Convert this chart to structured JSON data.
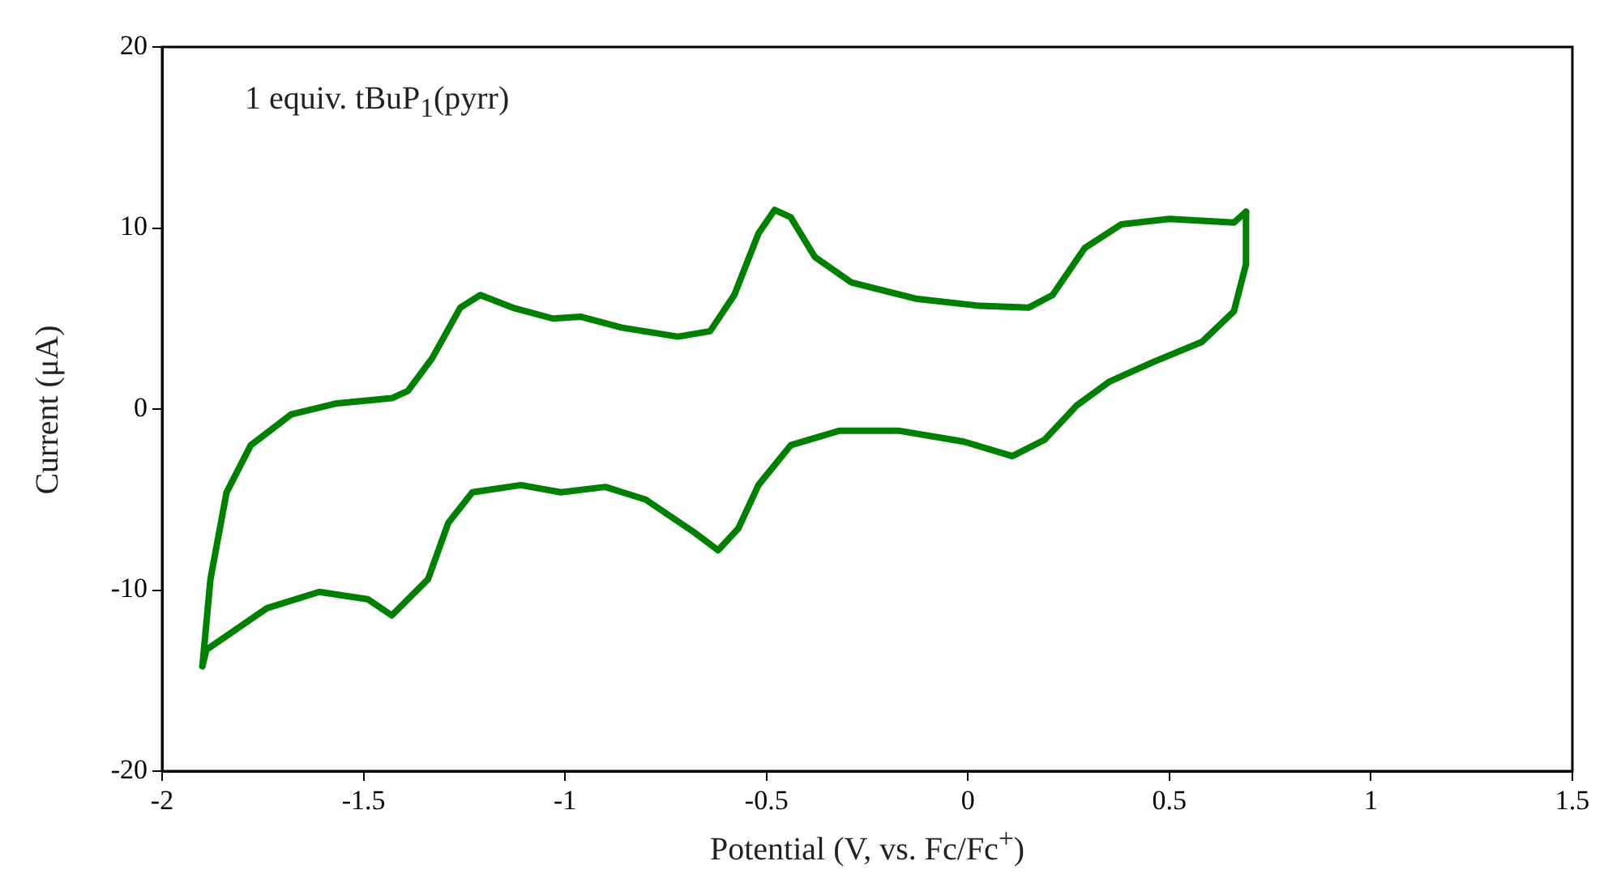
{
  "chart_data": {
    "type": "line",
    "xlabel": "Potential (V, vs. Fc/Fc$^{+}$)",
    "ylabel": "Current (μA)",
    "annotations": [
      "1 equiv. tBuP$_{1}$(pyrr)"
    ],
    "xlim": [
      -2,
      1.5
    ],
    "xticks": [
      -2,
      -1.5,
      -1,
      -0.5,
      0,
      0.5,
      1,
      1.5
    ],
    "ylim": [
      -20,
      20
    ],
    "yticks": [
      -20,
      -10,
      0,
      10,
      20
    ],
    "grid": false,
    "legend": false,
    "marker": "none",
    "line_style": "solid",
    "series": [
      {
        "color": "#008000",
        "x": [
          -1.9,
          -1.88,
          -1.84,
          -1.78,
          -1.68,
          -1.57,
          -1.43,
          -1.39,
          -1.33,
          -1.26,
          -1.21,
          -1.13,
          -1.03,
          -0.96,
          -0.86,
          -0.72,
          -0.64,
          -0.58,
          -0.52,
          -0.48,
          -0.44,
          -0.38,
          -0.29,
          -0.13,
          0.03,
          0.15,
          0.21,
          0.29,
          0.38,
          0.5,
          0.66,
          0.69
        ],
        "values": [
          -14.2,
          -9.4,
          -4.6,
          -2.0,
          -0.3,
          0.3,
          0.6,
          1.0,
          2.8,
          5.6,
          6.3,
          5.6,
          5.0,
          5.1,
          4.5,
          4.0,
          4.3,
          6.3,
          9.7,
          11.0,
          10.6,
          8.4,
          7.0,
          6.1,
          5.7,
          5.6,
          6.3,
          8.9,
          10.2,
          10.5,
          10.3,
          10.9
        ]
      },
      {
        "color": "#008000",
        "x": [
          0.69,
          0.69,
          0.66,
          0.58,
          0.46,
          0.35,
          0.27,
          0.19,
          0.11,
          -0.01,
          -0.17,
          -0.32,
          -0.44,
          -0.52,
          -0.57,
          -0.62,
          -0.68,
          -0.8,
          -0.9,
          -1.01,
          -1.11,
          -1.23,
          -1.29,
          -1.34,
          -1.43,
          -1.49,
          -1.61,
          -1.74,
          -1.89,
          -1.9
        ],
        "values": [
          10.9,
          8.0,
          5.4,
          3.7,
          2.6,
          1.5,
          0.2,
          -1.7,
          -2.6,
          -1.8,
          -1.2,
          -1.2,
          -2.0,
          -4.2,
          -6.6,
          -7.8,
          -6.8,
          -5.0,
          -4.3,
          -4.6,
          -4.2,
          -4.6,
          -6.3,
          -9.4,
          -11.4,
          -10.5,
          -10.1,
          -11.0,
          -13.3,
          -14.2
        ]
      }
    ]
  }
}
